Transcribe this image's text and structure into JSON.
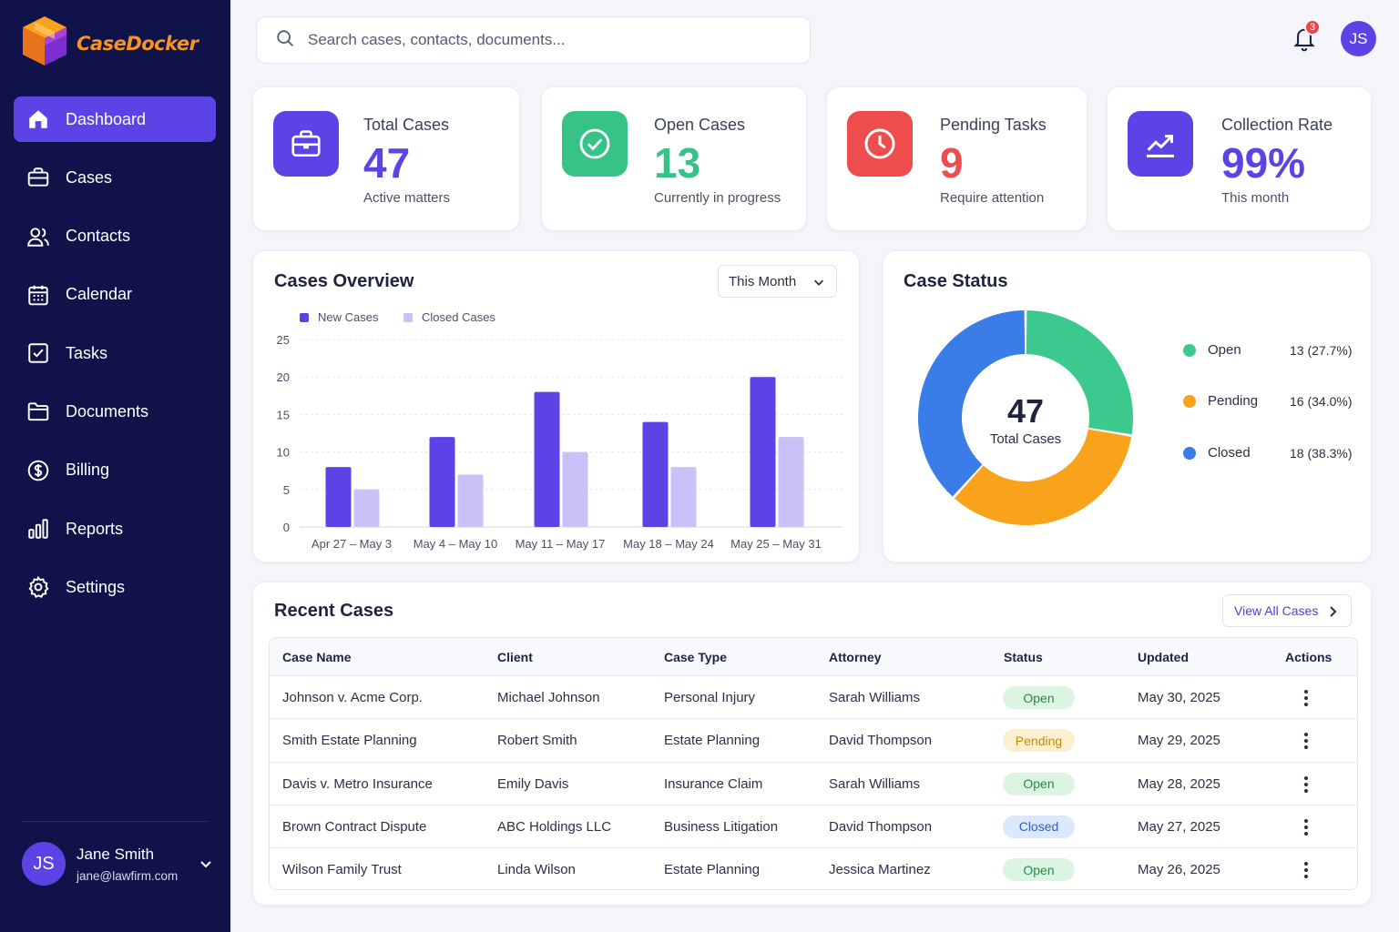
{
  "app": {
    "name": "CaseDocker"
  },
  "sidebar": {
    "items": [
      {
        "label": "Dashboard",
        "icon": "home-icon",
        "active": true
      },
      {
        "label": "Cases",
        "icon": "briefcase-icon"
      },
      {
        "label": "Contacts",
        "icon": "users-icon"
      },
      {
        "label": "Calendar",
        "icon": "calendar-icon"
      },
      {
        "label": "Tasks",
        "icon": "checkbox-icon"
      },
      {
        "label": "Documents",
        "icon": "folder-icon"
      },
      {
        "label": "Billing",
        "icon": "dollar-icon"
      },
      {
        "label": "Reports",
        "icon": "bar-chart-icon"
      },
      {
        "label": "Settings",
        "icon": "gear-icon"
      }
    ],
    "user": {
      "initials": "JS",
      "name": "Jane Smith",
      "email": "jane@lawfirm.com"
    }
  },
  "header": {
    "search_placeholder": "Search cases, contacts, documents...",
    "notification_count": "3",
    "avatar_initials": "JS"
  },
  "stats": [
    {
      "label": "Total Cases",
      "value": "47",
      "sub": "Active matters",
      "color": "#5b43e6",
      "icon": "briefcase-icon"
    },
    {
      "label": "Open Cases",
      "value": "13",
      "sub": "Currently in progress",
      "color": "#35c386",
      "icon": "check-circle-icon"
    },
    {
      "label": "Pending Tasks",
      "value": "9",
      "sub": "Require attention",
      "color": "#ef4d4d",
      "icon": "clock-icon"
    },
    {
      "label": "Collection Rate",
      "value": "99%",
      "sub": "This month",
      "color": "#5b43e6",
      "icon": "trending-up-icon"
    }
  ],
  "overview": {
    "title": "Cases Overview",
    "period": "This Month"
  },
  "chart_data": [
    {
      "type": "bar",
      "title": "Cases Overview",
      "categories": [
        "Apr 27 – May 3",
        "May 4 – May 10",
        "May 11 – May 17",
        "May 18 – May 24",
        "May 25 – May 31"
      ],
      "series": [
        {
          "name": "New Cases",
          "values": [
            8,
            12,
            18,
            14,
            20
          ],
          "color": "#5b43e6"
        },
        {
          "name": "Closed Cases",
          "values": [
            5,
            7,
            10,
            8,
            12
          ],
          "color": "#c9c1f7"
        }
      ],
      "yticks": [
        0,
        5,
        10,
        15,
        20,
        25
      ],
      "ylim": [
        0,
        25
      ],
      "grid": true,
      "legend": "top-left"
    },
    {
      "type": "pie",
      "title": "Case Status",
      "center_value": "47",
      "center_label": "Total Cases",
      "slices": [
        {
          "name": "Open",
          "value": 13,
          "label": "13 (27.7%)",
          "color": "#3cc98d"
        },
        {
          "name": "Pending",
          "value": 16,
          "label": "16 (34.0%)",
          "color": "#f9a21b"
        },
        {
          "name": "Closed",
          "value": 18,
          "label": "18 (38.3%)",
          "color": "#3b7de8"
        }
      ],
      "legend": "right"
    }
  ],
  "recent": {
    "title": "Recent Cases",
    "view_all": "View All Cases",
    "columns": [
      "Case Name",
      "Client",
      "Case Type",
      "Attorney",
      "Status",
      "Updated",
      "Actions"
    ],
    "rows": [
      {
        "case": "Johnson v. Acme Corp.",
        "client": "Michael Johnson",
        "type": "Personal Injury",
        "attorney": "Sarah Williams",
        "status": "Open",
        "updated": "May 30, 2025"
      },
      {
        "case": "Smith Estate Planning",
        "client": "Robert Smith",
        "type": "Estate Planning",
        "attorney": "David Thompson",
        "status": "Pending",
        "updated": "May 29, 2025"
      },
      {
        "case": "Davis v. Metro Insurance",
        "client": "Emily Davis",
        "type": "Insurance Claim",
        "attorney": "Sarah Williams",
        "status": "Open",
        "updated": "May 28, 2025"
      },
      {
        "case": "Brown Contract Dispute",
        "client": "ABC Holdings LLC",
        "type": "Business Litigation",
        "attorney": "David Thompson",
        "status": "Closed",
        "updated": "May 27, 2025"
      },
      {
        "case": "Wilson Family Trust",
        "client": "Linda Wilson",
        "type": "Estate Planning",
        "attorney": "Jessica Martinez",
        "status": "Open",
        "updated": "May 26, 2025"
      }
    ]
  }
}
